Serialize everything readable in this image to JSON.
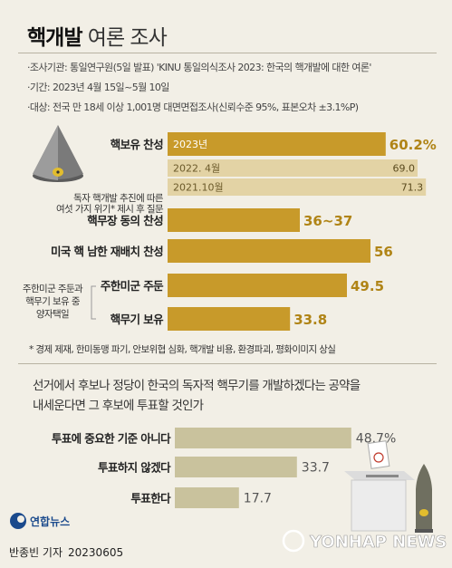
{
  "header": {
    "title_bold": "핵개발",
    "title_rest": " 여론 조사",
    "meta": [
      "·조사기관: 통일연구원(5일 발표) 'KINU 통일의식조사 2023: 한국의 핵개발에 대한 여론'",
      "·기간: 2023년 4월 15일~5월 10일",
      "·대상: 전국 만 18세 이상 1,001명 대면면접조사(신뢰수준 95%, 표본오차 ±3.1%P)"
    ]
  },
  "chart_data": [
    {
      "type": "bar",
      "orientation": "horizontal",
      "xlim": [
        0,
        75
      ],
      "bars": [
        {
          "label": "핵보유 찬성",
          "inner_label": "2023년",
          "value_text": "60.2%",
          "value": 60.2,
          "style": "main"
        },
        {
          "label": "",
          "inner_label": "2022. 4월",
          "value_text": "69.0",
          "value": 69.0,
          "style": "past"
        },
        {
          "label": "",
          "inner_label": "2021.10월",
          "value_text": "71.3",
          "value": 71.3,
          "style": "past"
        },
        {
          "label": "핵무장 동의 찬성",
          "inner_label": "",
          "value_text": "36~37",
          "value": 36.5,
          "style": "main"
        },
        {
          "label": "미국 핵 남한 재배치 찬성",
          "inner_label": "",
          "value_text": "56",
          "value": 56,
          "style": "main"
        },
        {
          "label": "주한미군 주둔",
          "inner_label": "",
          "value_text": "49.5",
          "value": 49.5,
          "style": "main"
        },
        {
          "label": "핵무기 보유",
          "inner_label": "",
          "value_text": "33.8",
          "value": 33.8,
          "style": "main"
        }
      ],
      "side_labels": {
        "nuclear_note_lines": [
          "독자 핵개발 추진에 따른",
          "여섯 가지 위기* 제시 후 질문"
        ],
        "choice_lines": [
          "주한미군 주둔과",
          "핵무기 보유 중",
          "양자택일"
        ]
      }
    },
    {
      "type": "bar",
      "orientation": "horizontal",
      "xlim": [
        0,
        75
      ],
      "bars": [
        {
          "label": "투표에 중요한 기준 아니다",
          "value_text": "48.7%",
          "value": 48.7
        },
        {
          "label": "투표하지 않겠다",
          "value_text": "33.7",
          "value": 33.7
        },
        {
          "label": "투표한다",
          "value_text": "17.7",
          "value": 17.7
        }
      ]
    }
  ],
  "footnote": "* 경제 제재, 한미동맹 파기, 안보위협 심화, 핵개발 비용, 환경파괴, 평화이미지 상실",
  "question_lines": [
    "선거에서 후보나 정당이 한국의 독자적 핵무기를 개발하겠다는 공약을",
    "내세운다면 그 후보에 투표할 것인가"
  ],
  "brand": {
    "logo_text": "연합뉴스",
    "watermark": "YONHAP NEWS"
  },
  "byline": {
    "reporter": "반종빈 기자",
    "date": "20230605"
  },
  "colors": {
    "main_bar": "#c89a2a",
    "past_bar": "#e3d3a5",
    "vote_bar": "#c9c29d",
    "background": "#f2efe6",
    "header_band": "#e6dfcc",
    "logo_blue": "#1b4a8c"
  }
}
